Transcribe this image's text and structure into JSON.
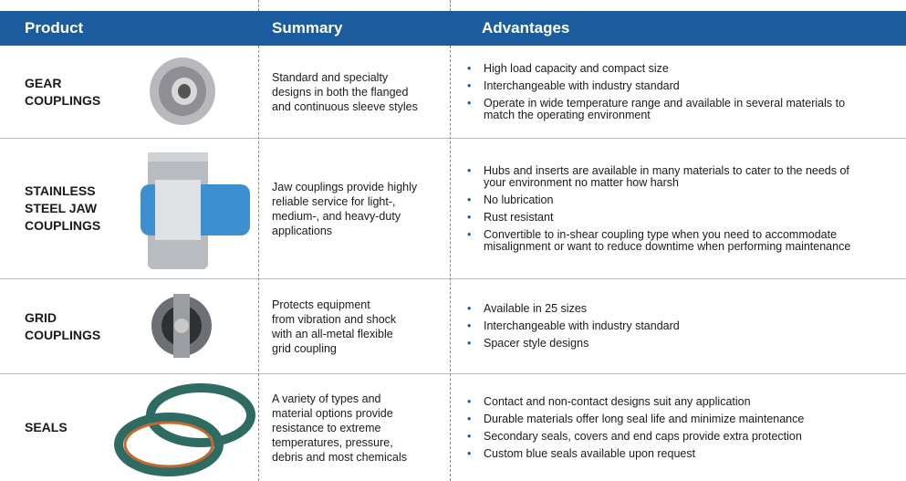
{
  "header": {
    "product": "Product",
    "summary": "Summary",
    "advantages": "Advantages"
  },
  "rows": [
    {
      "product": [
        "GEAR",
        "COUPLINGS"
      ],
      "summary": [
        "Standard and specialty",
        "designs in both the flanged",
        "and continuous sleeve styles"
      ],
      "advantages": [
        "High load capacity and compact size",
        "Interchangeable with industry standard",
        "Operate in wide temperature range and available in several materials to match the operating environment"
      ]
    },
    {
      "product": [
        "STAINLESS",
        "STEEL JAW",
        "COUPLINGS"
      ],
      "summary": [
        "Jaw couplings provide highly",
        "reliable service for light-,",
        "medium-, and heavy-duty",
        "applications"
      ],
      "advantages": [
        "Hubs and inserts are available in many materials to cater to the needs of your environment no matter how harsh",
        "No lubrication",
        "Rust resistant",
        "Convertible to in-shear coupling type when you need to accommodate misalignment or want to reduce downtime when performing maintenance"
      ]
    },
    {
      "product": [
        "GRID",
        "COUPLINGS"
      ],
      "summary": [
        "Protects equipment",
        "from vibration and shock",
        "with an all-metal flexible",
        "grid coupling"
      ],
      "advantages": [
        "Available in 25 sizes",
        "Interchangeable with industry standard",
        "Spacer style designs"
      ]
    },
    {
      "product": [
        "SEALS"
      ],
      "summary": [
        "A variety of types and",
        "material options provide",
        "resistance to extreme",
        "temperatures, pressure,",
        "debris and most chemicals"
      ],
      "advantages": [
        "Contact and non-contact designs suit any application",
        "Durable materials offer long seal life and minimize maintenance",
        "Secondary seals, covers and end caps provide extra protection",
        "Custom blue seals available upon request"
      ]
    }
  ]
}
